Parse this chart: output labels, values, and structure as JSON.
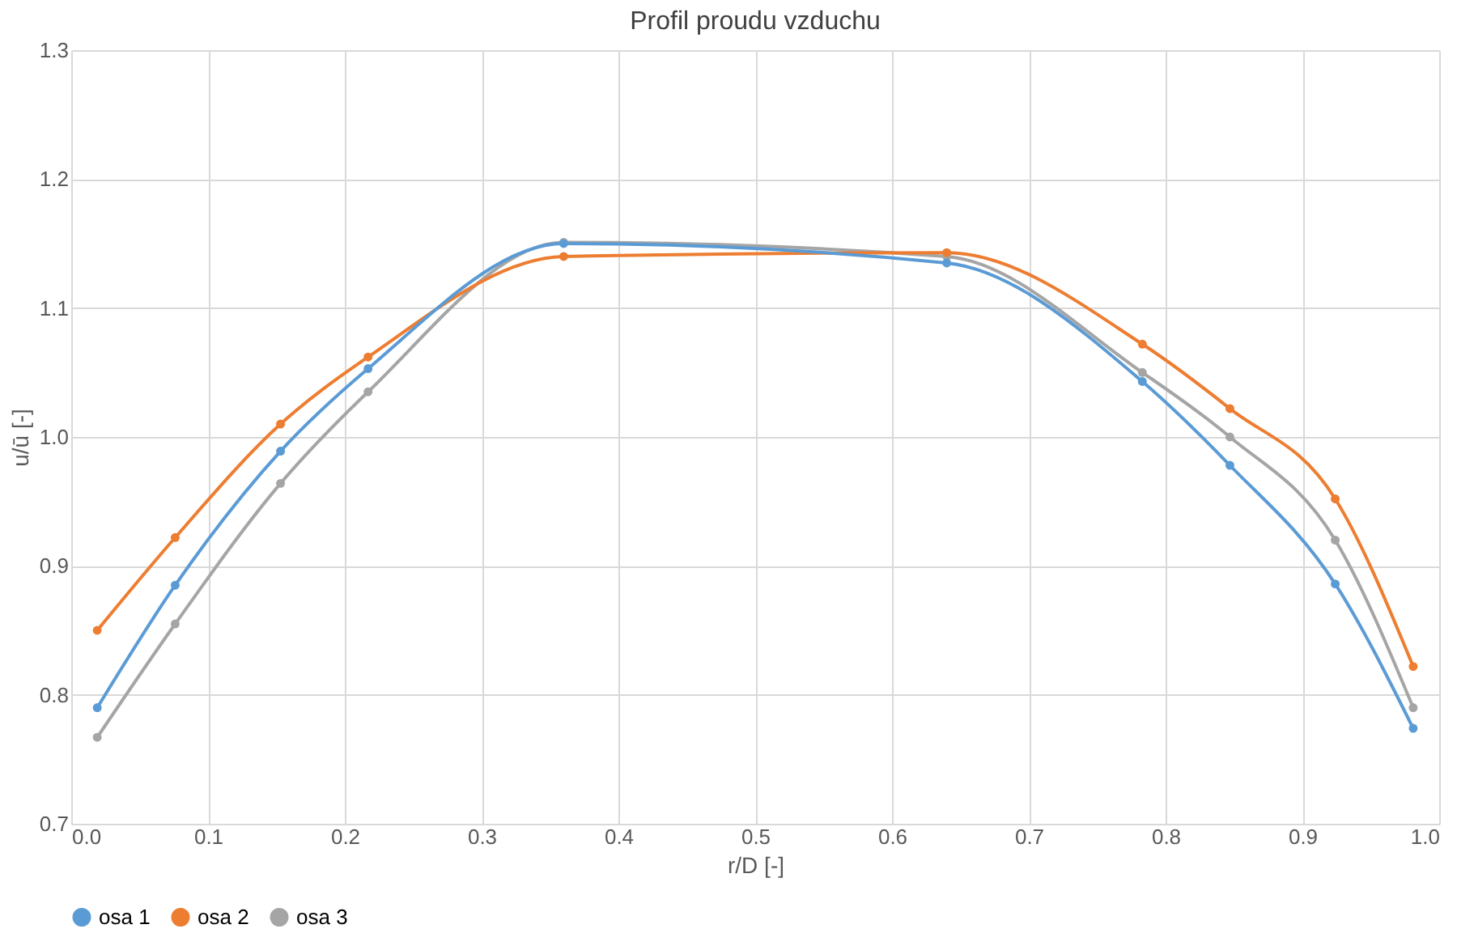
{
  "chart_data": {
    "type": "line",
    "title": "Profil proudu vzduchu",
    "xlabel": "r/D [-]",
    "ylabel": "u/ū [-]",
    "x": [
      0.019,
      0.076,
      0.153,
      0.217,
      0.36,
      0.64,
      0.783,
      0.847,
      0.924,
      0.981
    ],
    "series": [
      {
        "name": "osa 1",
        "color": "#5b9bd5",
        "values": [
          0.79,
          0.885,
          0.989,
          1.053,
          1.15,
          1.135,
          1.043,
          0.978,
          0.886,
          0.774
        ]
      },
      {
        "name": "osa 2",
        "color": "#ed7d31",
        "values": [
          0.85,
          0.922,
          1.01,
          1.062,
          1.14,
          1.143,
          1.072,
          1.022,
          0.952,
          0.822
        ]
      },
      {
        "name": "osa 3",
        "color": "#a5a5a5",
        "values": [
          0.767,
          0.855,
          0.964,
          1.035,
          1.151,
          1.14,
          1.05,
          1.0,
          0.92,
          0.79
        ]
      }
    ],
    "xlim": [
      0.0,
      1.0
    ],
    "xticks": [
      {
        "value": 0,
        "label": "0.0"
      },
      0.1,
      0.2,
      0.3,
      0.4,
      0.5,
      0.6,
      0.7,
      0.8,
      0.9,
      {
        "value": 1,
        "label": "1.0"
      }
    ],
    "ylim": [
      0.7,
      1.3
    ],
    "yticks": [
      0.7,
      0.8,
      0.9,
      {
        "value": 1,
        "label": "1.0"
      },
      1.1,
      1.2,
      1.3
    ],
    "grid": true,
    "legend": "bottom",
    "marker": "circle",
    "line_style": "solid"
  }
}
